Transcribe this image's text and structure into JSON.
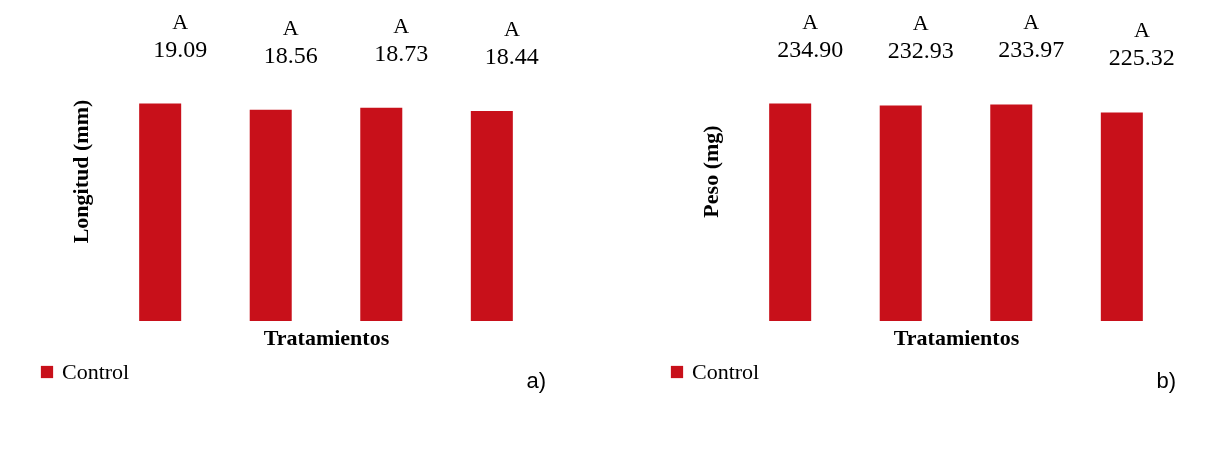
{
  "chart_data": [
    {
      "type": "bar",
      "xlabel": "Tratamientos",
      "ylabel": "Longitud (mm)",
      "categories": [
        null,
        null,
        null,
        null
      ],
      "series": [
        {
          "name": "Control",
          "color": "#c8101a",
          "values": [
            19.09,
            18.56,
            18.73,
            18.44
          ]
        }
      ],
      "data_labels": true,
      "legend": "bottom left",
      "annotations": [
        "A",
        "A",
        "A",
        "A",
        "a)"
      ]
    },
    {
      "type": "bar",
      "xlabel": "Tratamientos",
      "ylabel": "Peso (mg)",
      "categories": [
        null,
        null,
        null,
        null
      ],
      "series": [
        {
          "name": "Control",
          "color": "#c8101a",
          "values": [
            234.9,
            232.93,
            233.97,
            225.32
          ],
          "value_labels": [
            "234.90",
            "232.93",
            "233.97",
            "225.32"
          ]
        }
      ],
      "legend": "bottom left",
      "annotations": [
        "A",
        "A",
        "A",
        "A",
        "b)"
      ]
    }
  ]
}
